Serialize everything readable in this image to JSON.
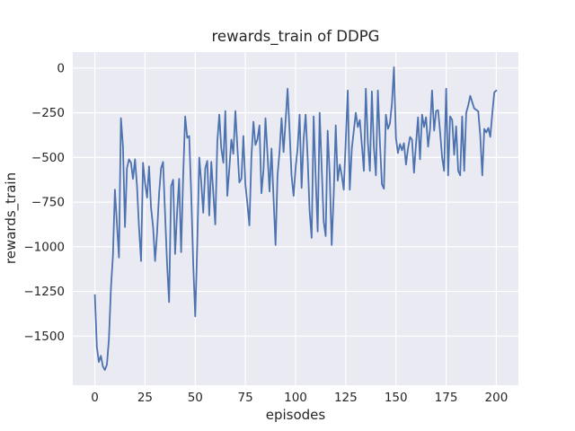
{
  "chart_data": {
    "type": "line",
    "title": "rewards_train of DDPG",
    "xlabel": "episodes",
    "ylabel": "rewards_train",
    "x_ticks": [
      0,
      25,
      50,
      75,
      100,
      125,
      150,
      175,
      200
    ],
    "x_tick_labels": [
      "0",
      "25",
      "50",
      "75",
      "100",
      "125",
      "150",
      "175",
      "200"
    ],
    "y_ticks": [
      0,
      -250,
      -500,
      -750,
      -1000,
      -1250,
      -1500
    ],
    "y_tick_labels": [
      "0",
      "−250",
      "−500",
      "−750",
      "−1000",
      "−1250",
      "−1500"
    ],
    "xlim": [
      -11,
      211
    ],
    "ylim": [
      -1775,
      90
    ],
    "grid": true,
    "legend": false,
    "line_color": "#4c72b0",
    "plot_background": "#eaeaf2",
    "grid_color": "#ffffff",
    "text_color": "#262626",
    "series": [
      {
        "name": "rewards_train",
        "x_start": 0,
        "x_step": 1,
        "values": [
          -1270,
          -1560,
          -1645,
          -1610,
          -1670,
          -1690,
          -1660,
          -1520,
          -1230,
          -1050,
          -680,
          -875,
          -1060,
          -280,
          -440,
          -890,
          -560,
          -510,
          -530,
          -620,
          -510,
          -660,
          -890,
          -1080,
          -530,
          -640,
          -725,
          -550,
          -780,
          -890,
          -1080,
          -925,
          -700,
          -560,
          -525,
          -825,
          -1100,
          -1310,
          -660,
          -625,
          -1040,
          -800,
          -620,
          -1030,
          -600,
          -270,
          -390,
          -380,
          -700,
          -1100,
          -1390,
          -1000,
          -500,
          -640,
          -810,
          -560,
          -520,
          -825,
          -525,
          -700,
          -875,
          -410,
          -260,
          -450,
          -530,
          -240,
          -715,
          -560,
          -400,
          -480,
          -240,
          -440,
          -640,
          -620,
          -380,
          -650,
          -760,
          -880,
          -500,
          -300,
          -430,
          -400,
          -320,
          -700,
          -570,
          -280,
          -480,
          -690,
          -450,
          -720,
          -990,
          -600,
          -470,
          -280,
          -470,
          -300,
          -115,
          -350,
          -600,
          -715,
          -560,
          -450,
          -260,
          -670,
          -400,
          -260,
          -500,
          -800,
          -950,
          -270,
          -600,
          -915,
          -250,
          -550,
          -860,
          -940,
          -350,
          -600,
          -990,
          -700,
          -320,
          -630,
          -540,
          -600,
          -680,
          -400,
          -125,
          -680,
          -450,
          -350,
          -250,
          -330,
          -290,
          -425,
          -575,
          -115,
          -410,
          -575,
          -130,
          -440,
          -600,
          -125,
          -410,
          -650,
          -675,
          -260,
          -340,
          -310,
          -200,
          5,
          -390,
          -475,
          -425,
          -460,
          -420,
          -540,
          -450,
          -385,
          -400,
          -585,
          -420,
          -275,
          -510,
          -260,
          -330,
          -275,
          -440,
          -340,
          -125,
          -350,
          -240,
          -235,
          -360,
          -500,
          -575,
          -115,
          -600,
          -270,
          -290,
          -485,
          -325,
          -575,
          -600,
          -270,
          -575,
          -250,
          -210,
          -155,
          -190,
          -225,
          -233,
          -242,
          -375,
          -600,
          -340,
          -360,
          -335,
          -385,
          -250,
          -135,
          -125
        ]
      }
    ]
  }
}
